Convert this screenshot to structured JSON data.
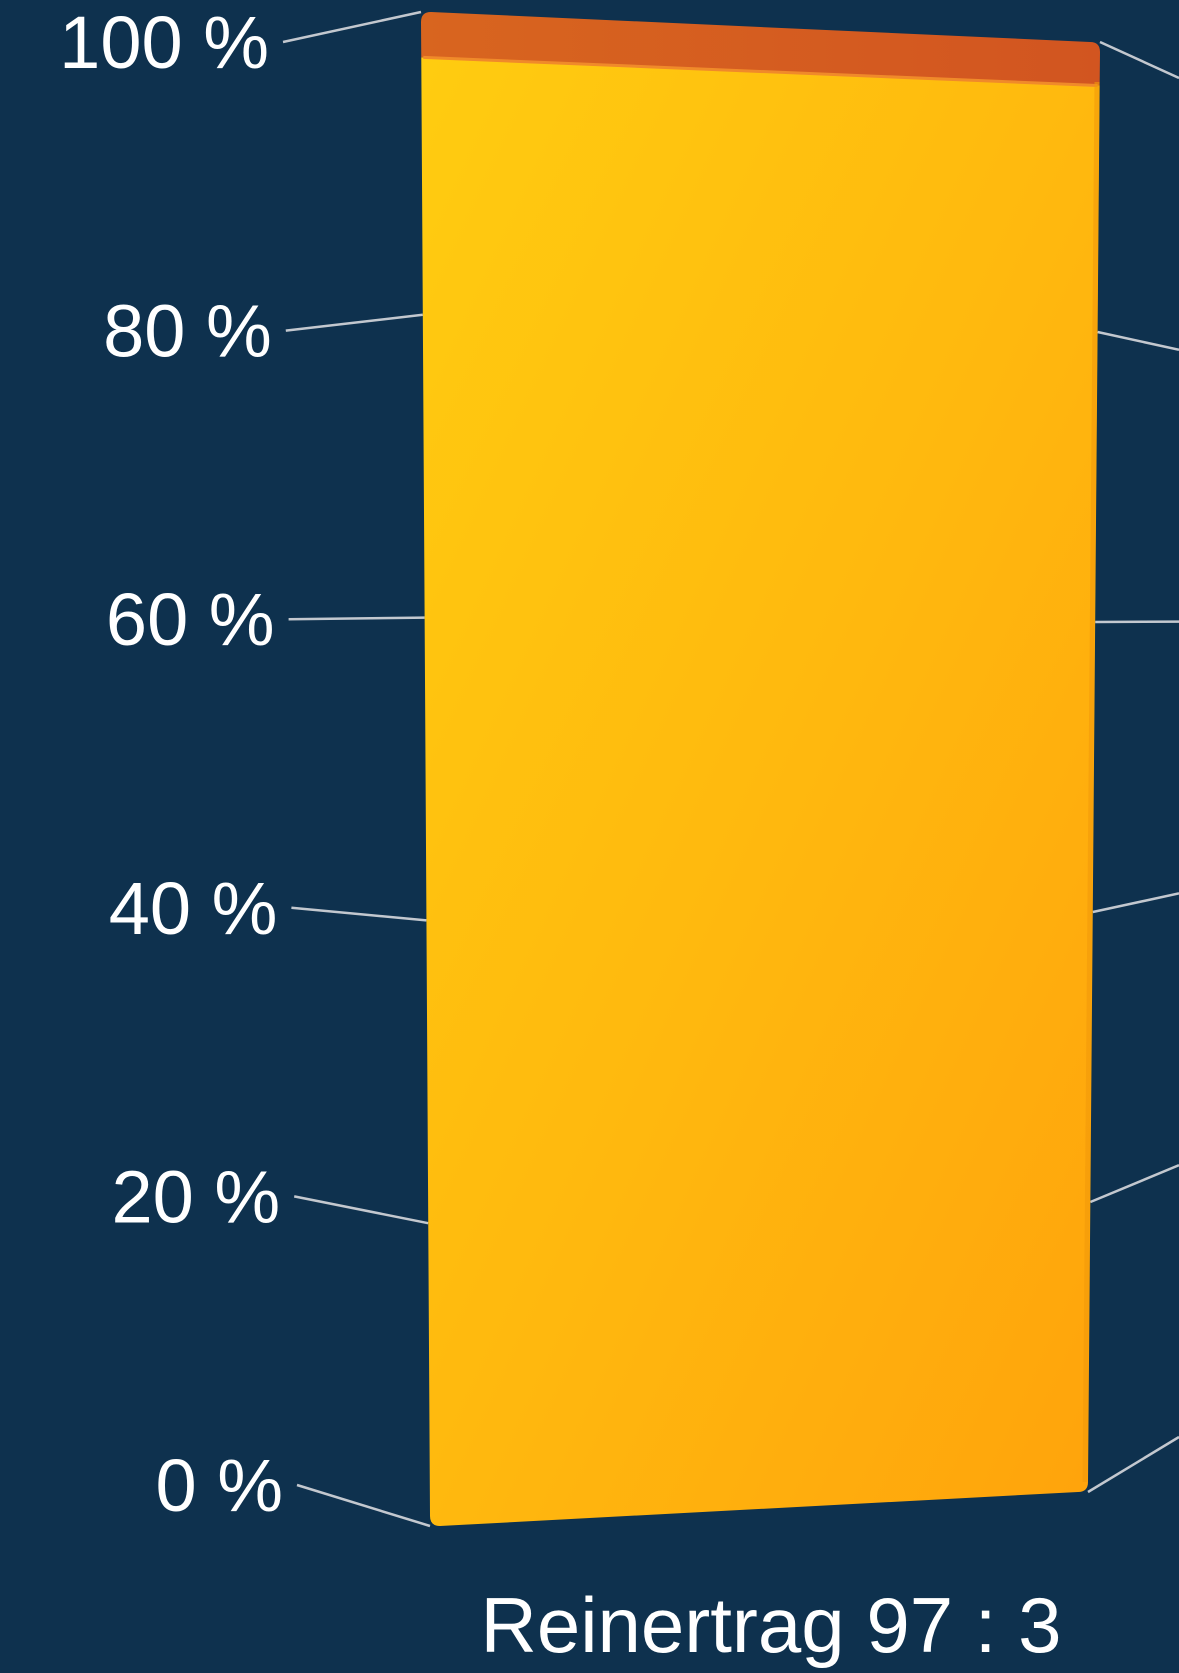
{
  "chart_data": {
    "type": "bar",
    "stacked": true,
    "percent": true,
    "categories": [
      "Reinertrag 97 : 3"
    ],
    "series": [
      {
        "values": [
          97
        ],
        "color": "#ffb511"
      },
      {
        "values": [
          3
        ],
        "color": "#d45a22"
      }
    ],
    "ylim": [
      0,
      100
    ],
    "yticks": [
      0,
      20,
      40,
      60,
      80,
      100
    ],
    "ytick_labels": [
      "0 %",
      "20 %",
      "40 %",
      "60 %",
      "80 %",
      "100 %"
    ],
    "grid": true,
    "legend": "none",
    "colors": {
      "background": "#0e314e",
      "grid": "#c3c8cf",
      "text": "#ffffff"
    }
  }
}
